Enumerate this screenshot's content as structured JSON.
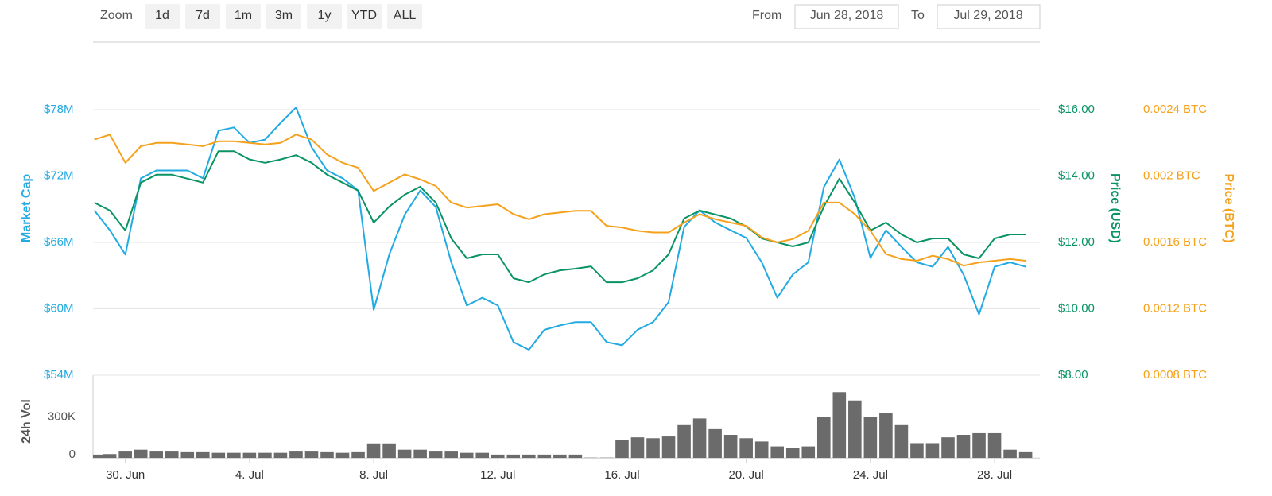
{
  "range_selector": {
    "label": "Zoom",
    "buttons": [
      "1d",
      "7d",
      "1m",
      "3m",
      "1y",
      "YTD",
      "ALL"
    ]
  },
  "date_range": {
    "from_label": "From",
    "from": "Jun 28, 2018",
    "to_label": "To",
    "to": "Jul 29, 2018"
  },
  "chart_data": [
    {
      "type": "line",
      "ylabel": "Market Cap",
      "y2label": "Price (USD)",
      "y3label": "Price (BTC)",
      "xlim": [
        "2018-06-28T23:00",
        "2018-07-29T11:00"
      ],
      "ylim": [
        54000000,
        84000000
      ],
      "yticks": [
        {
          "value": 54000000,
          "label": "$54M"
        },
        {
          "value": 60000000,
          "label": "$60M"
        },
        {
          "value": 66000000,
          "label": "$66M"
        },
        {
          "value": 72000000,
          "label": "$72M"
        },
        {
          "value": 78000000,
          "label": "$78M"
        }
      ],
      "y2lim": [
        8,
        18
      ],
      "y2ticks": [
        {
          "value": 8,
          "label": "$8.00"
        },
        {
          "value": 10,
          "label": "$10.00"
        },
        {
          "value": 12,
          "label": "$12.00"
        },
        {
          "value": 14,
          "label": "$14.00"
        },
        {
          "value": 16,
          "label": "$16.00"
        }
      ],
      "y3lim": [
        0.0008,
        0.0028
      ],
      "y3ticks": [
        {
          "value": 0.0008,
          "label": "0.0008 BTC"
        },
        {
          "value": 0.0012,
          "label": "0.0012 BTC"
        },
        {
          "value": 0.0016,
          "label": "0.0016 BTC"
        },
        {
          "value": 0.002,
          "label": "0.002 BTC"
        },
        {
          "value": 0.0024,
          "label": "0.0024 BTC"
        }
      ],
      "grid": true,
      "x": [
        "2018-06-29T00:00",
        "2018-06-29T12:00",
        "2018-06-30T00:00",
        "2018-06-30T12:00",
        "2018-07-01T00:00",
        "2018-07-01T12:00",
        "2018-07-02T00:00",
        "2018-07-02T12:00",
        "2018-07-03T00:00",
        "2018-07-03T12:00",
        "2018-07-04T00:00",
        "2018-07-04T12:00",
        "2018-07-05T00:00",
        "2018-07-05T12:00",
        "2018-07-06T00:00",
        "2018-07-06T12:00",
        "2018-07-07T00:00",
        "2018-07-07T12:00",
        "2018-07-08T00:00",
        "2018-07-08T12:00",
        "2018-07-09T00:00",
        "2018-07-09T12:00",
        "2018-07-10T00:00",
        "2018-07-10T12:00",
        "2018-07-11T00:00",
        "2018-07-11T12:00",
        "2018-07-12T00:00",
        "2018-07-12T12:00",
        "2018-07-13T00:00",
        "2018-07-13T12:00",
        "2018-07-14T00:00",
        "2018-07-14T12:00",
        "2018-07-15T00:00",
        "2018-07-15T12:00",
        "2018-07-16T00:00",
        "2018-07-16T12:00",
        "2018-07-17T00:00",
        "2018-07-17T12:00",
        "2018-07-18T00:00",
        "2018-07-18T12:00",
        "2018-07-19T00:00",
        "2018-07-19T12:00",
        "2018-07-20T00:00",
        "2018-07-20T12:00",
        "2018-07-21T00:00",
        "2018-07-21T12:00",
        "2018-07-22T00:00",
        "2018-07-22T12:00",
        "2018-07-23T00:00",
        "2018-07-23T12:00",
        "2018-07-24T00:00",
        "2018-07-24T12:00",
        "2018-07-25T00:00",
        "2018-07-25T12:00",
        "2018-07-26T00:00",
        "2018-07-26T12:00",
        "2018-07-27T00:00",
        "2018-07-27T12:00",
        "2018-07-28T00:00",
        "2018-07-28T12:00",
        "2018-07-29T00:00"
      ],
      "series": [
        {
          "name": "Market Cap",
          "color": "#22aae2",
          "axis": "y",
          "values": [
            68900000,
            67100000,
            64900000,
            71800000,
            72500000,
            72500000,
            72500000,
            71800000,
            76100000,
            76400000,
            75000000,
            75300000,
            76800000,
            78200000,
            74600000,
            72500000,
            71800000,
            70700000,
            59900000,
            64900000,
            68500000,
            70700000,
            69200000,
            64200000,
            60300000,
            61000000,
            60300000,
            57000000,
            56300000,
            58100000,
            58500000,
            58800000,
            58800000,
            57000000,
            56700000,
            58100000,
            58800000,
            60600000,
            67400000,
            68900000,
            67800000,
            67100000,
            66400000,
            64200000,
            61000000,
            63100000,
            64200000,
            71000000,
            73500000,
            70000000,
            64600000,
            67100000,
            65600000,
            64200000,
            63800000,
            65600000,
            63100000,
            59500000,
            63800000,
            64200000,
            63800000
          ]
        },
        {
          "name": "Price (USD)",
          "color": "#0a9364",
          "axis": "y2",
          "values": [
            13.2,
            12.96,
            12.36,
            13.8,
            14.04,
            14.04,
            13.92,
            13.8,
            14.75,
            14.75,
            14.5,
            14.4,
            14.5,
            14.63,
            14.4,
            14.04,
            13.8,
            13.56,
            12.6,
            13.08,
            13.44,
            13.68,
            13.2,
            12.12,
            11.52,
            11.64,
            11.64,
            10.92,
            10.8,
            11.04,
            11.16,
            11.21,
            11.28,
            10.8,
            10.8,
            10.92,
            11.16,
            11.64,
            12.72,
            12.96,
            12.84,
            12.72,
            12.48,
            12.12,
            12.0,
            11.88,
            12.0,
            13.08,
            13.92,
            13.2,
            12.36,
            12.6,
            12.24,
            12.0,
            12.12,
            12.12,
            11.64,
            11.52,
            12.12,
            12.24,
            12.24
          ]
        },
        {
          "name": "Price (BTC)",
          "color": "#f5a11b",
          "axis": "y3",
          "values": [
            0.00222,
            0.00225,
            0.00208,
            0.00218,
            0.0022,
            0.0022,
            0.00219,
            0.00218,
            0.00221,
            0.00221,
            0.0022,
            0.00219,
            0.0022,
            0.00225,
            0.00222,
            0.00213,
            0.00208,
            0.00205,
            0.00191,
            0.00196,
            0.00201,
            0.00198,
            0.00194,
            0.00184,
            0.00181,
            0.00182,
            0.00183,
            0.00177,
            0.00174,
            0.00177,
            0.00178,
            0.00179,
            0.00179,
            0.0017,
            0.00169,
            0.00167,
            0.00166,
            0.00166,
            0.00172,
            0.00177,
            0.00174,
            0.00172,
            0.0017,
            0.00163,
            0.0016,
            0.00162,
            0.00167,
            0.00184,
            0.00184,
            0.00177,
            0.00167,
            0.00153,
            0.0015,
            0.00149,
            0.00152,
            0.0015,
            0.00146,
            0.00148,
            0.00149,
            0.0015,
            0.00149
          ]
        }
      ]
    },
    {
      "type": "bar",
      "ylabel": "24h Vol",
      "color": "#6b6b6b",
      "xlim": [
        "2018-06-28T23:00",
        "2018-07-29T11:00"
      ],
      "xticks": [
        {
          "value": "2018-06-30T00:00",
          "label": "30. Jun"
        },
        {
          "value": "2018-07-04T00:00",
          "label": "4. Jul"
        },
        {
          "value": "2018-07-08T00:00",
          "label": "8. Jul"
        },
        {
          "value": "2018-07-12T00:00",
          "label": "12. Jul"
        },
        {
          "value": "2018-07-16T00:00",
          "label": "16. Jul"
        },
        {
          "value": "2018-07-20T00:00",
          "label": "20. Jul"
        },
        {
          "value": "2018-07-24T00:00",
          "label": "24. Jul"
        },
        {
          "value": "2018-07-28T00:00",
          "label": "28. Jul"
        }
      ],
      "ylim": [
        0,
        650000
      ],
      "yticks": [
        0,
        {
          "value": 300000,
          "label": "300K"
        }
      ],
      "grid": true,
      "x": [
        "2018-06-29T00:00",
        "2018-06-29T12:00",
        "2018-06-30T00:00",
        "2018-06-30T12:00",
        "2018-07-01T00:00",
        "2018-07-01T12:00",
        "2018-07-02T00:00",
        "2018-07-02T12:00",
        "2018-07-03T00:00",
        "2018-07-03T12:00",
        "2018-07-04T00:00",
        "2018-07-04T12:00",
        "2018-07-05T00:00",
        "2018-07-05T12:00",
        "2018-07-06T00:00",
        "2018-07-06T12:00",
        "2018-07-07T00:00",
        "2018-07-07T12:00",
        "2018-07-08T00:00",
        "2018-07-08T12:00",
        "2018-07-09T00:00",
        "2018-07-09T12:00",
        "2018-07-10T00:00",
        "2018-07-10T12:00",
        "2018-07-11T00:00",
        "2018-07-11T12:00",
        "2018-07-12T00:00",
        "2018-07-12T12:00",
        "2018-07-13T00:00",
        "2018-07-13T12:00",
        "2018-07-14T00:00",
        "2018-07-14T12:00",
        "2018-07-15T00:00",
        "2018-07-15T12:00",
        "2018-07-16T00:00",
        "2018-07-16T12:00",
        "2018-07-17T00:00",
        "2018-07-17T12:00",
        "2018-07-18T00:00",
        "2018-07-18T12:00",
        "2018-07-19T00:00",
        "2018-07-19T12:00",
        "2018-07-20T00:00",
        "2018-07-20T12:00",
        "2018-07-21T00:00",
        "2018-07-21T12:00",
        "2018-07-22T00:00",
        "2018-07-22T12:00",
        "2018-07-23T00:00",
        "2018-07-23T12:00",
        "2018-07-24T00:00",
        "2018-07-24T12:00",
        "2018-07-25T00:00",
        "2018-07-25T12:00",
        "2018-07-26T00:00",
        "2018-07-26T12:00",
        "2018-07-27T00:00",
        "2018-07-27T12:00",
        "2018-07-28T00:00",
        "2018-07-28T12:00",
        "2018-07-29T00:00"
      ],
      "values": [
        26000,
        30000,
        50000,
        65000,
        50000,
        50000,
        45000,
        45000,
        40000,
        40000,
        40000,
        40000,
        40000,
        50000,
        50000,
        45000,
        40000,
        45000,
        115000,
        115000,
        65000,
        65000,
        50000,
        50000,
        40000,
        40000,
        26000,
        26000,
        26000,
        26000,
        26000,
        26000,
        2000,
        2000,
        143000,
        163000,
        156000,
        170000,
        260000,
        313000,
        228000,
        183000,
        156000,
        130000,
        91000,
        78000,
        91000,
        326000,
        522000,
        456000,
        326000,
        358000,
        260000,
        117000,
        117000,
        163000,
        183000,
        196000,
        196000,
        65000,
        45000
      ]
    }
  ]
}
